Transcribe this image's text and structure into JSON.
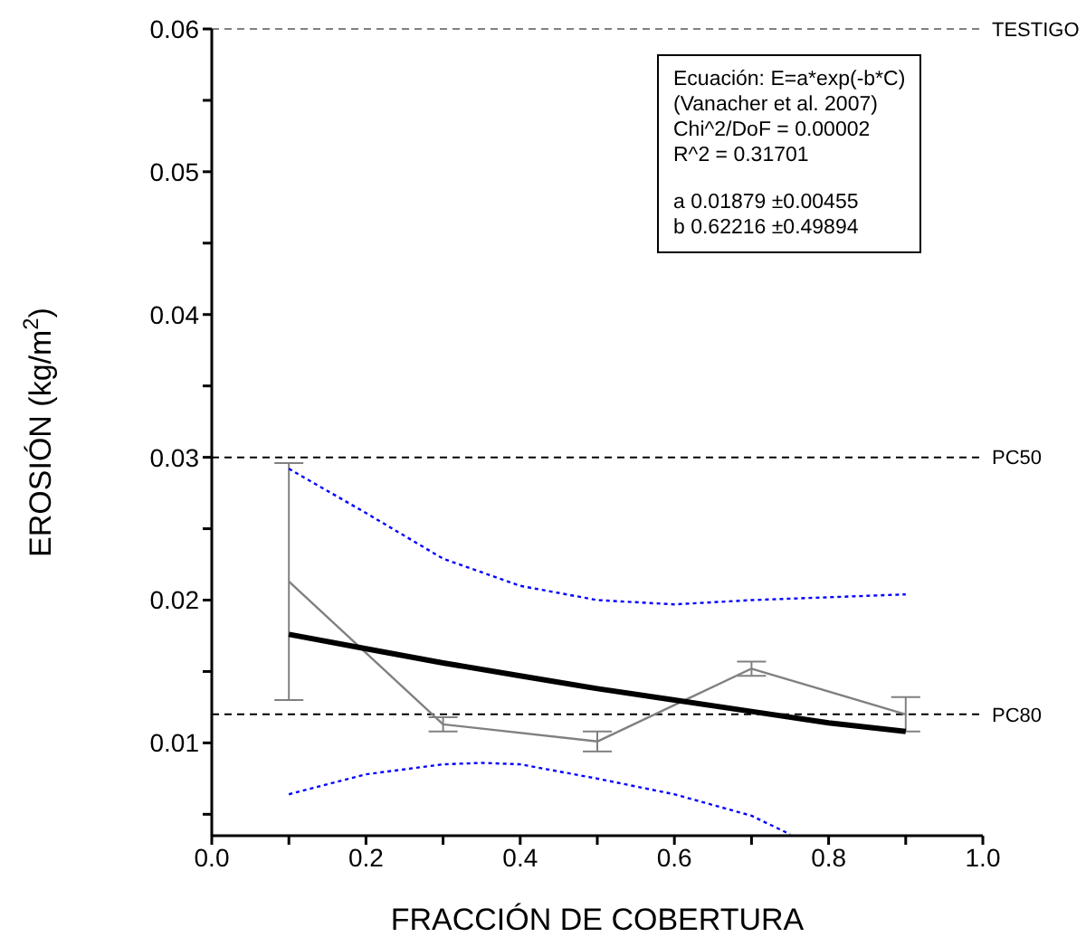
{
  "chart_data": {
    "type": "line",
    "xlabel": "FRACCIÓN DE COBERTURA",
    "ylabel": "EROSIÓN (kg/m$^{2}$)",
    "xlim": [
      0,
      1
    ],
    "ylim": [
      0.0035,
      0.06
    ],
    "xticks": [
      {
        "value": 0,
        "label": "0.0"
      },
      {
        "value": 0.1,
        "label": null
      },
      {
        "value": 0.2,
        "label": "0.2"
      },
      {
        "value": 0.3,
        "label": null
      },
      {
        "value": 0.4,
        "label": "0.4"
      },
      {
        "value": 0.5,
        "label": null
      },
      {
        "value": 0.6,
        "label": "0.6"
      },
      {
        "value": 0.7,
        "label": null
      },
      {
        "value": 0.8,
        "label": "0.8"
      },
      {
        "value": 0.9,
        "label": null
      },
      {
        "value": 1,
        "label": "1.0"
      }
    ],
    "yticks": [
      {
        "value": 0.005,
        "label": null
      },
      0.01,
      {
        "value": 0.015,
        "label": null
      },
      0.02,
      {
        "value": 0.025,
        "label": null
      },
      0.03,
      {
        "value": 0.035,
        "label": null
      },
      0.04,
      {
        "value": 0.045,
        "label": null
      },
      0.05,
      {
        "value": 0.055,
        "label": null
      },
      0.06
    ],
    "grid": false,
    "legend": false,
    "marker": "none",
    "series": [
      {
        "color": "#808080",
        "x": [
          0.1,
          0.3,
          0.5,
          0.7,
          0.9
        ],
        "values": [
          0.0213,
          0.0113,
          0.0101,
          0.0152,
          0.012
        ],
        "errors": [
          0.0083,
          0.0005,
          0.0007,
          0.0005,
          0.0012
        ]
      },
      {
        "color": "#000000",
        "x": [
          0.1,
          0.2,
          0.3,
          0.4,
          0.5,
          0.6,
          0.7,
          0.8,
          0.9
        ],
        "values": [
          0.0176,
          0.0166,
          0.0156,
          0.0147,
          0.0138,
          0.013,
          0.0122,
          0.0114,
          0.0108
        ]
      },
      {
        "color": "#0000ff",
        "line_style": "dotted",
        "x": [
          0.1,
          0.2,
          0.3,
          0.4,
          0.5,
          0.6,
          0.7,
          0.8,
          0.9
        ],
        "values": [
          0.0292,
          0.0261,
          0.0229,
          0.021,
          0.02,
          0.0197,
          0.02,
          0.0202,
          0.0204
        ]
      },
      {
        "color": "#0000ff",
        "line_style": "dotted",
        "x": [
          0.1,
          0.2,
          0.3,
          0.35,
          0.4,
          0.5,
          0.6,
          0.7,
          0.75
        ],
        "values": [
          0.0064,
          0.0078,
          0.0085,
          0.0086,
          0.0085,
          0.0075,
          0.0064,
          0.0049,
          0.0036
        ]
      }
    ],
    "ref_lines": [
      {
        "axis": "y",
        "value": 0.06,
        "label": "TESTIGO",
        "color": "#808080",
        "line_style": "dashed"
      },
      {
        "axis": "y",
        "value": 0.03,
        "label": "PC50",
        "color": "#000000",
        "line_style": "dashed"
      },
      {
        "axis": "y",
        "value": 0.012,
        "label": "PC80",
        "color": "#000000",
        "line_style": "dashed"
      }
    ],
    "annotations": [
      "Ecuación: E=a*exp(-b*C)",
      "(Vanacher et al. 2007)",
      "Chi^2/DoF = 0.00002",
      "R^2 = 0.31701",
      "a 0.01879 ±0.00455",
      "b 0.62216 ±0.49894"
    ]
  }
}
